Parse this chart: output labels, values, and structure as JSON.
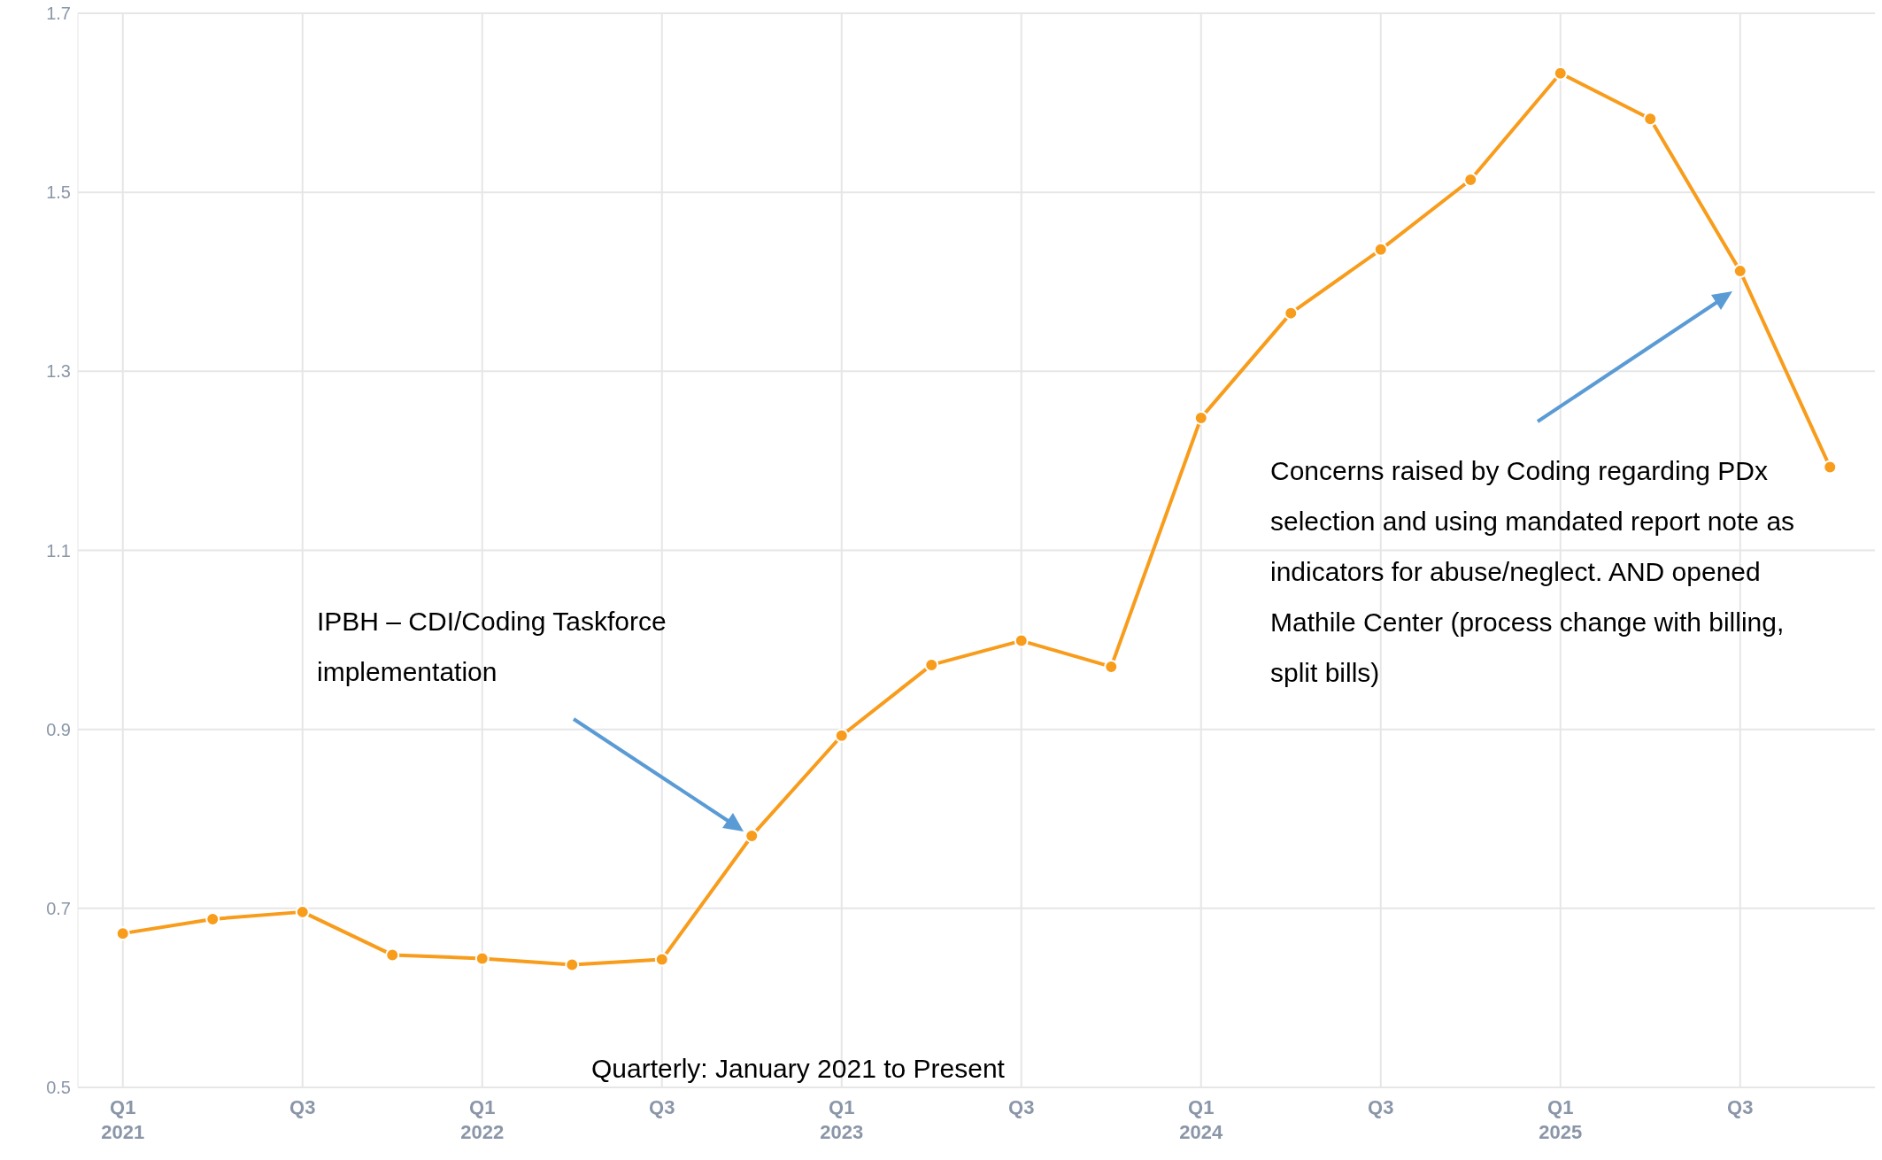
{
  "chart_data": {
    "type": "line",
    "xlabel": "Quarterly: January 2021 to Present",
    "categories": [
      "Q1 2021",
      null,
      "Q3",
      null,
      "Q1 2022",
      null,
      "Q3",
      null,
      "Q1 2023",
      null,
      "Q3",
      null,
      "Q1 2024",
      null,
      "Q3",
      null,
      "Q1 2025",
      null,
      "Q3",
      null
    ],
    "series": [
      {
        "color": "#f89c1c",
        "values": [
          0.672,
          0.688,
          0.696,
          0.648,
          0.644,
          0.637,
          0.643,
          0.781,
          0.893,
          0.972,
          0.999,
          0.97,
          1.248,
          1.365,
          1.436,
          1.514,
          1.633,
          1.582,
          1.412,
          1.193
        ]
      }
    ],
    "ylim": [
      0.5,
      1.7
    ],
    "yticks": [
      0.5,
      0.7,
      0.9,
      1.1,
      1.3,
      1.5,
      1.7
    ],
    "grid": true,
    "marker": "circle",
    "line_style": "solid",
    "legend": false,
    "annotations": [
      "IPBH – CDI/Coding Taskforce implementation",
      "Concerns raised by Coding regarding PDx selection and using mandated report note as indicators for abuse/neglect. AND opened Mathile Center (process change with billing, split bills)"
    ]
  }
}
